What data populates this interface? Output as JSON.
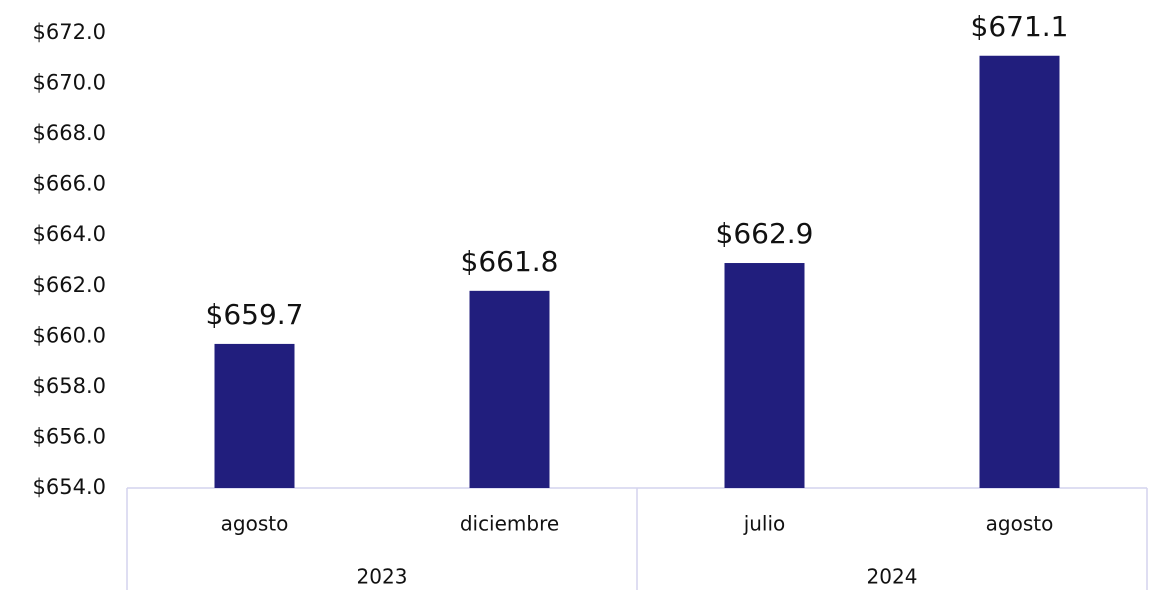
{
  "chart_data": {
    "type": "bar",
    "categories": [
      "agosto",
      "diciembre",
      "julio",
      "agosto"
    ],
    "category_groups": [
      "2023",
      "2023",
      "2024",
      "2024"
    ],
    "values": [
      659.7,
      661.8,
      662.9,
      671.1
    ],
    "value_labels": [
      "$659.7",
      "$661.8",
      "$662.9",
      "$671.1"
    ],
    "color": "#211e7d",
    "ylim": [
      654,
      672
    ],
    "yticks": [
      {
        "value": 654,
        "label": "$654.0"
      },
      {
        "value": 656,
        "label": "$656.0"
      },
      {
        "value": 658,
        "label": "$658.0"
      },
      {
        "value": 660,
        "label": "$660.0"
      },
      {
        "value": 662,
        "label": "$662.0"
      },
      {
        "value": 664,
        "label": "$664.0"
      },
      {
        "value": 666,
        "label": "$666.0"
      },
      {
        "value": 668,
        "label": "$668.0"
      },
      {
        "value": 670,
        "label": "$670.0"
      },
      {
        "value": 672,
        "label": "$672.0"
      }
    ],
    "grid": false
  }
}
